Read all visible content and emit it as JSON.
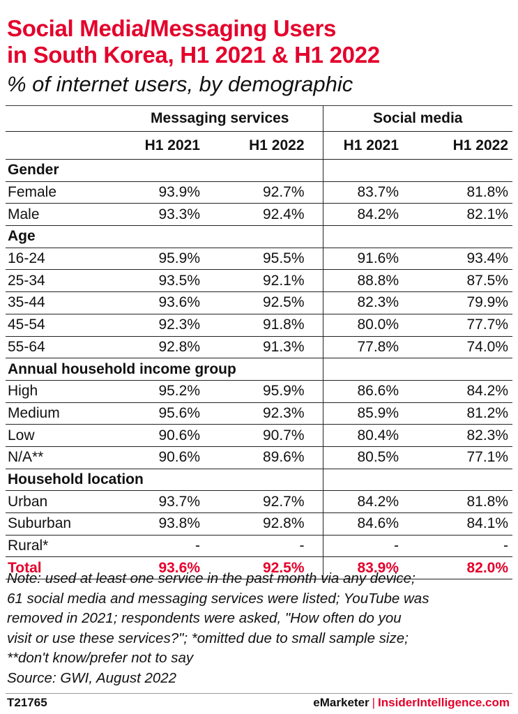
{
  "title_line1": "Social Media/Messaging Users",
  "title_line2": "in South Korea, H1 2021 & H1 2022",
  "subtitle": "% of internet users, by demographic",
  "column_groups": [
    "Messaging services",
    "Social media"
  ],
  "years": [
    "H1 2021",
    "H1 2022",
    "H1 2021",
    "H1 2022"
  ],
  "rows": [
    {
      "label": "Gender",
      "section": true,
      "values": [
        "",
        "",
        "",
        ""
      ]
    },
    {
      "label": "Female",
      "values": [
        "93.9%",
        "92.7%",
        "83.7%",
        "81.8%"
      ]
    },
    {
      "label": "Male",
      "values": [
        "93.3%",
        "92.4%",
        "84.2%",
        "82.1%"
      ]
    },
    {
      "label": "Age",
      "section": true,
      "values": [
        "",
        "",
        "",
        ""
      ]
    },
    {
      "label": "16-24",
      "values": [
        "95.9%",
        "95.5%",
        "91.6%",
        "93.4%"
      ]
    },
    {
      "label": "25-34",
      "values": [
        "93.5%",
        "92.1%",
        "88.8%",
        "87.5%"
      ]
    },
    {
      "label": "35-44",
      "values": [
        "93.6%",
        "92.5%",
        "82.3%",
        "79.9%"
      ]
    },
    {
      "label": "45-54",
      "values": [
        "92.3%",
        "91.8%",
        "80.0%",
        "77.7%"
      ]
    },
    {
      "label": "55-64",
      "values": [
        "92.8%",
        "91.3%",
        "77.8%",
        "74.0%"
      ]
    },
    {
      "label": "Annual household income group",
      "section": true,
      "values": [
        "",
        "",
        "",
        ""
      ]
    },
    {
      "label": "High",
      "values": [
        "95.2%",
        "95.9%",
        "86.6%",
        "84.2%"
      ]
    },
    {
      "label": "Medium",
      "values": [
        "95.6%",
        "92.3%",
        "85.9%",
        "81.2%"
      ]
    },
    {
      "label": "Low",
      "values": [
        "90.6%",
        "90.7%",
        "80.4%",
        "82.3%"
      ]
    },
    {
      "label": "N/A**",
      "values": [
        "90.6%",
        "89.6%",
        "80.5%",
        "77.1%"
      ]
    },
    {
      "label": "Household location",
      "section": true,
      "values": [
        "",
        "",
        "",
        ""
      ]
    },
    {
      "label": "Urban",
      "values": [
        "93.7%",
        "92.7%",
        "84.2%",
        "81.8%"
      ]
    },
    {
      "label": "Suburban",
      "values": [
        "93.8%",
        "92.8%",
        "84.6%",
        "84.1%"
      ]
    },
    {
      "label": "Rural*",
      "values": [
        "-",
        "-",
        "-",
        "-"
      ]
    },
    {
      "label": "Total",
      "total": true,
      "values": [
        "93.6%",
        "92.5%",
        "83.9%",
        "82.0%"
      ]
    }
  ],
  "note_lines": [
    "Note: used at least one service in the past month via any device;",
    "61 social media and messaging services were listed; YouTube was",
    "removed in 2021; respondents were asked, \"How often do you",
    "visit or use these services?\"; *omitted due to small sample size;",
    "**don't know/prefer not to say",
    "Source: GWI, August 2022"
  ],
  "footer": {
    "id": "T21765",
    "brand": "eMarketer",
    "separator": "|",
    "site": "InsiderIntelligence.com"
  },
  "colors": {
    "accent": "#e4002b",
    "text": "#111111"
  },
  "chart_data": {
    "type": "table",
    "title": "Social Media/Messaging Users in South Korea, H1 2021 & H1 2022",
    "subtitle": "% of internet users, by demographic",
    "columns": [
      "Messaging services H1 2021",
      "Messaging services H1 2022",
      "Social media H1 2021",
      "Social media H1 2022"
    ],
    "sections": [
      {
        "name": "Gender",
        "rows": [
          {
            "label": "Female",
            "values": [
              93.9,
              92.7,
              83.7,
              81.8
            ]
          },
          {
            "label": "Male",
            "values": [
              93.3,
              92.4,
              84.2,
              82.1
            ]
          }
        ]
      },
      {
        "name": "Age",
        "rows": [
          {
            "label": "16-24",
            "values": [
              95.9,
              95.5,
              91.6,
              93.4
            ]
          },
          {
            "label": "25-34",
            "values": [
              93.5,
              92.1,
              88.8,
              87.5
            ]
          },
          {
            "label": "35-44",
            "values": [
              93.6,
              92.5,
              82.3,
              79.9
            ]
          },
          {
            "label": "45-54",
            "values": [
              92.3,
              91.8,
              80.0,
              77.7
            ]
          },
          {
            "label": "55-64",
            "values": [
              92.8,
              91.3,
              77.8,
              74.0
            ]
          }
        ]
      },
      {
        "name": "Annual household income group",
        "rows": [
          {
            "label": "High",
            "values": [
              95.2,
              95.9,
              86.6,
              84.2
            ]
          },
          {
            "label": "Medium",
            "values": [
              95.6,
              92.3,
              85.9,
              81.2
            ]
          },
          {
            "label": "Low",
            "values": [
              90.6,
              90.7,
              80.4,
              82.3
            ]
          },
          {
            "label": "N/A**",
            "values": [
              90.6,
              89.6,
              80.5,
              77.1
            ]
          }
        ]
      },
      {
        "name": "Household location",
        "rows": [
          {
            "label": "Urban",
            "values": [
              93.7,
              92.7,
              84.2,
              81.8
            ]
          },
          {
            "label": "Suburban",
            "values": [
              93.8,
              92.8,
              84.6,
              84.1
            ]
          },
          {
            "label": "Rural*",
            "values": [
              null,
              null,
              null,
              null
            ]
          }
        ]
      }
    ],
    "total": {
      "label": "Total",
      "values": [
        93.6,
        92.5,
        83.9,
        82.0
      ]
    }
  }
}
